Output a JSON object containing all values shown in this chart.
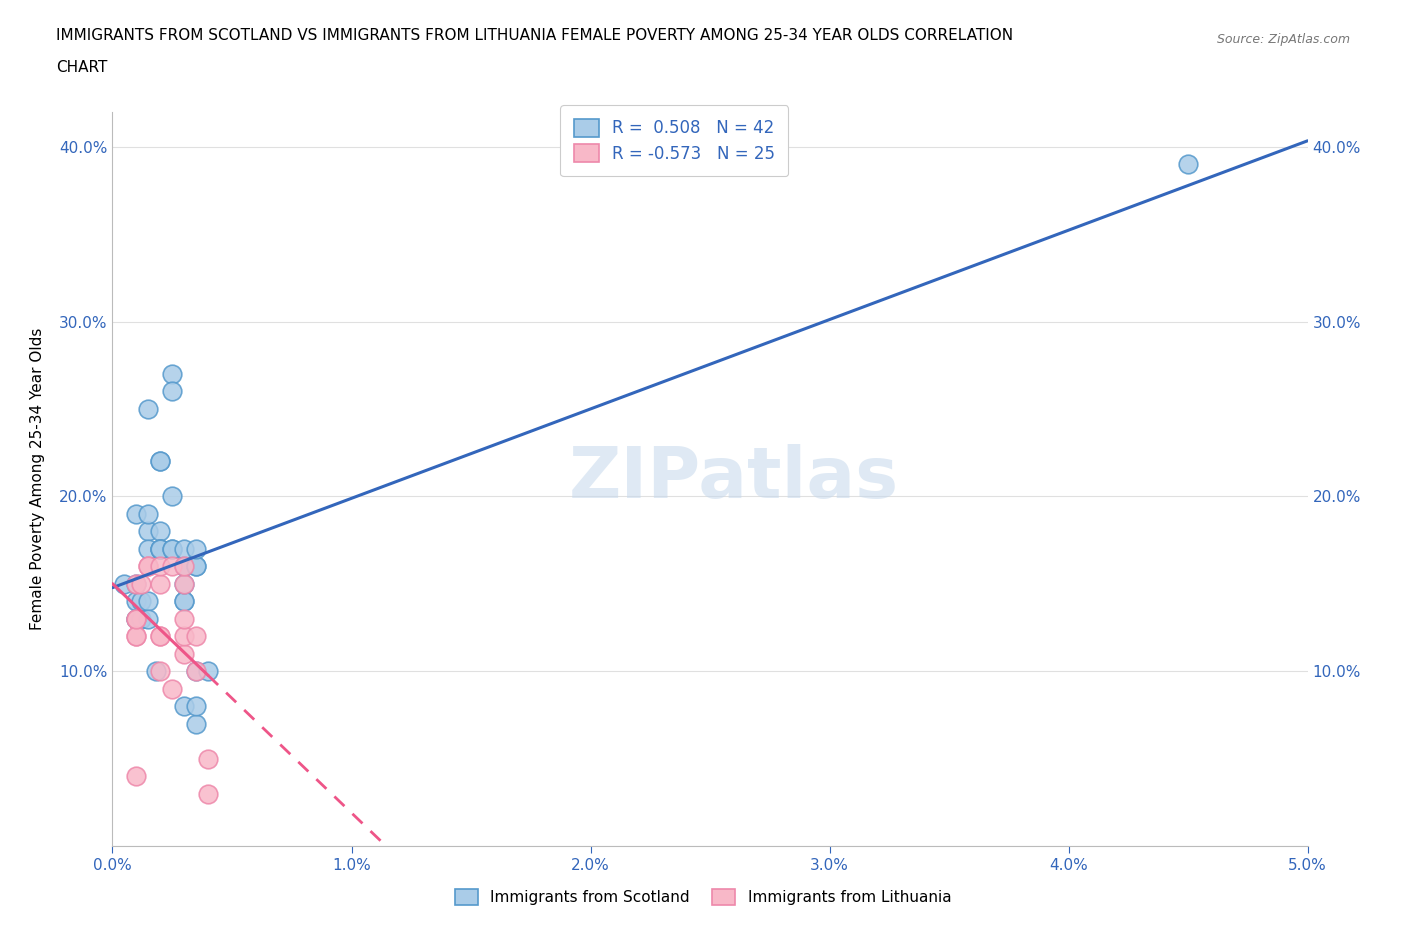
{
  "title": "IMMIGRANTS FROM SCOTLAND VS IMMIGRANTS FROM LITHUANIA FEMALE POVERTY AMONG 25-34 YEAR OLDS CORRELATION\nCHART",
  "source": "Source: ZipAtlas.com",
  "ylabel": "Female Poverty Among 25-34 Year Olds",
  "xlim": [
    0.0,
    0.05
  ],
  "ylim": [
    0.0,
    0.42
  ],
  "x_ticks": [
    0.0,
    0.01,
    0.02,
    0.03,
    0.04,
    0.05
  ],
  "x_tick_labels": [
    "0.0%",
    "1.0%",
    "2.0%",
    "3.0%",
    "4.0%",
    "5.0%"
  ],
  "y_ticks": [
    0.0,
    0.1,
    0.2,
    0.3,
    0.4
  ],
  "y_tick_labels": [
    "",
    "10.0%",
    "20.0%",
    "30.0%",
    "40.0%"
  ],
  "scotland_color": "#aacce8",
  "scotland_edge": "#5599cc",
  "lithuania_color": "#f8b8c8",
  "lithuania_edge": "#ee88aa",
  "scotland_R": 0.508,
  "scotland_N": 42,
  "lithuania_R": -0.573,
  "lithuania_N": 25,
  "watermark": "ZIPatlas",
  "scotland_line_color": "#3366bb",
  "lithuania_line_color": "#ee5588",
  "scotland_x": [
    0.0005,
    0.001,
    0.001,
    0.001,
    0.001,
    0.001,
    0.0012,
    0.0012,
    0.0015,
    0.0015,
    0.0015,
    0.0015,
    0.0015,
    0.0015,
    0.0018,
    0.002,
    0.002,
    0.002,
    0.002,
    0.002,
    0.002,
    0.0025,
    0.0025,
    0.0025,
    0.0025,
    0.0025,
    0.003,
    0.003,
    0.003,
    0.003,
    0.003,
    0.003,
    0.003,
    0.003,
    0.0035,
    0.0035,
    0.0035,
    0.0035,
    0.0035,
    0.0035,
    0.004,
    0.045
  ],
  "scotland_y": [
    0.15,
    0.14,
    0.15,
    0.19,
    0.13,
    0.13,
    0.13,
    0.14,
    0.18,
    0.17,
    0.14,
    0.13,
    0.19,
    0.25,
    0.1,
    0.22,
    0.22,
    0.18,
    0.17,
    0.17,
    0.17,
    0.27,
    0.26,
    0.2,
    0.17,
    0.17,
    0.08,
    0.14,
    0.14,
    0.15,
    0.16,
    0.16,
    0.16,
    0.17,
    0.16,
    0.16,
    0.17,
    0.07,
    0.08,
    0.1,
    0.1,
    0.39
  ],
  "lithuania_x": [
    0.001,
    0.001,
    0.001,
    0.001,
    0.001,
    0.001,
    0.0012,
    0.0015,
    0.0015,
    0.002,
    0.002,
    0.002,
    0.002,
    0.002,
    0.0025,
    0.0025,
    0.003,
    0.003,
    0.003,
    0.003,
    0.003,
    0.0035,
    0.0035,
    0.004,
    0.004
  ],
  "lithuania_y": [
    0.12,
    0.13,
    0.15,
    0.12,
    0.04,
    0.13,
    0.15,
    0.16,
    0.16,
    0.12,
    0.12,
    0.1,
    0.15,
    0.16,
    0.09,
    0.16,
    0.11,
    0.12,
    0.13,
    0.15,
    0.16,
    0.12,
    0.1,
    0.03,
    0.05
  ],
  "grid_color": "#e0e0e0",
  "tick_color": "#3366bb",
  "background_color": "#ffffff"
}
